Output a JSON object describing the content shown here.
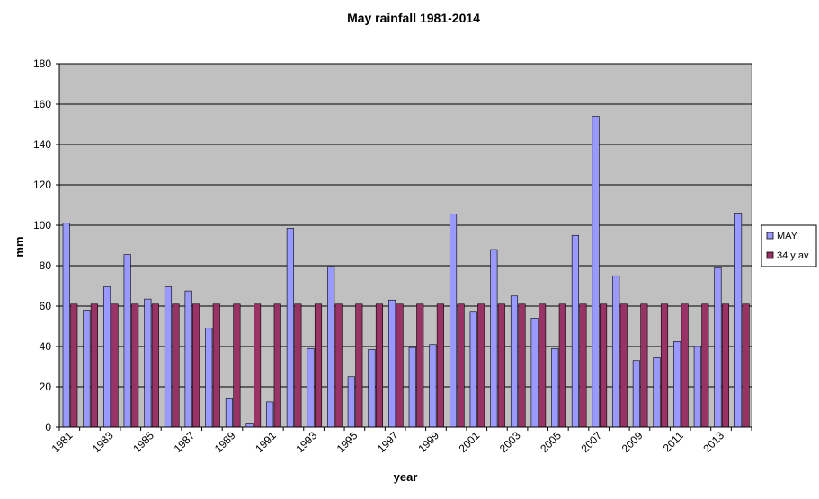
{
  "chart_data": {
    "type": "bar",
    "title": "May rainfall  1981-2014",
    "xlabel": "year",
    "ylabel": "mm",
    "ylim": [
      0,
      180
    ],
    "yticks": [
      0,
      20,
      40,
      60,
      80,
      100,
      120,
      140,
      160,
      180
    ],
    "grid": true,
    "legend_position": "right",
    "plot_background": "#c0c0c0",
    "categories": [
      "1981",
      "1982",
      "1983",
      "1984",
      "1985",
      "1986",
      "1987",
      "1988",
      "1989",
      "1990",
      "1991",
      "1992",
      "1993",
      "1994",
      "1995",
      "1996",
      "1997",
      "1998",
      "1999",
      "2000",
      "2001",
      "2002",
      "2003",
      "2004",
      "2005",
      "2006",
      "2007",
      "2008",
      "2009",
      "2010",
      "2011",
      "2012",
      "2013",
      "2014"
    ],
    "xtick_labels": [
      "1981",
      "",
      "1983",
      "",
      "1985",
      "",
      "1987",
      "",
      "1989",
      "",
      "1991",
      "",
      "1993",
      "",
      "1995",
      "",
      "1997",
      "",
      "1999",
      "",
      "2001",
      "",
      "2003",
      "",
      "2005",
      "",
      "2007",
      "",
      "2009",
      "",
      "2011",
      "",
      "2013",
      ""
    ],
    "series": [
      {
        "name": "MAY",
        "color": "#9999ff",
        "values": [
          101,
          58,
          69.5,
          85.5,
          63.5,
          69.5,
          67.5,
          49,
          14,
          2,
          12.5,
          98.5,
          39,
          79.5,
          25,
          38.5,
          63,
          39.5,
          41,
          105.5,
          57,
          88,
          65,
          54,
          39,
          95,
          154,
          75,
          33,
          34.5,
          42.5,
          40,
          79,
          106
        ]
      },
      {
        "name": "34 y av",
        "color": "#993366",
        "values": [
          61,
          61,
          61,
          61,
          61,
          61,
          61,
          61,
          61,
          61,
          61,
          61,
          61,
          61,
          61,
          61,
          61,
          61,
          61,
          61,
          61,
          61,
          61,
          61,
          61,
          61,
          61,
          61,
          61,
          61,
          61,
          61,
          61,
          61
        ]
      }
    ]
  }
}
